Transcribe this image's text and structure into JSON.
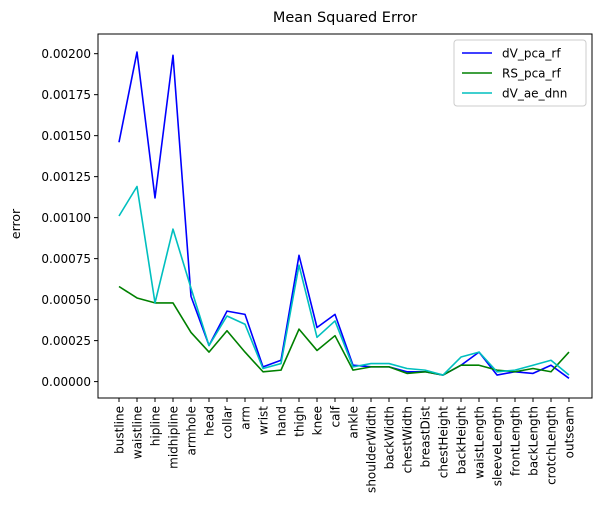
{
  "chart_data": {
    "type": "line",
    "title": "Mean Squared Error",
    "xlabel": "",
    "ylabel": "error",
    "ylim": [
      -0.0001,
      0.00212
    ],
    "yticks": [
      0.0,
      0.00025,
      0.0005,
      0.00075,
      0.001,
      0.00125,
      0.0015,
      0.00175,
      0.002
    ],
    "ytick_labels": [
      "0.00000",
      "0.00025",
      "0.00050",
      "0.00075",
      "0.00100",
      "0.00125",
      "0.00150",
      "0.00175",
      "0.00200"
    ],
    "grid": false,
    "legend_position": "top-right",
    "categories": [
      "bustline",
      "waistline",
      "hipline",
      "midhipline",
      "armhole",
      "head",
      "collar",
      "arm",
      "wrist",
      "hand",
      "thigh",
      "knee",
      "calf",
      "ankle",
      "shoulderWidth",
      "backWidth",
      "chestWidth",
      "breastDist",
      "chestHeight",
      "backHeight",
      "waistLength",
      "sleeveLength",
      "frontLength",
      "backLength",
      "crotchLength",
      "outseam"
    ],
    "series": [
      {
        "name": "dV_pca_rf",
        "color": "#0000ff",
        "values": [
          0.00146,
          0.00201,
          0.00112,
          0.00199,
          0.00052,
          0.00022,
          0.00043,
          0.00041,
          9e-05,
          0.00013,
          0.00077,
          0.00033,
          0.00041,
          0.0001,
          9e-05,
          9e-05,
          6e-05,
          6e-05,
          4e-05,
          0.0001,
          0.00018,
          4e-05,
          6e-05,
          5e-05,
          0.0001,
          2e-05
        ]
      },
      {
        "name": "RS_pca_rf",
        "color": "#008000",
        "values": [
          0.00058,
          0.00051,
          0.00048,
          0.00048,
          0.0003,
          0.00018,
          0.00031,
          0.00018,
          6e-05,
          7e-05,
          0.00032,
          0.00019,
          0.00028,
          7e-05,
          9e-05,
          9e-05,
          5e-05,
          6e-05,
          4e-05,
          0.0001,
          0.0001,
          7e-05,
          6e-05,
          8e-05,
          6e-05,
          0.00018
        ]
      },
      {
        "name": "dV_ae_dnn",
        "color": "#00bfbf",
        "values": [
          0.00101,
          0.00119,
          0.00048,
          0.00093,
          0.00057,
          0.00022,
          0.0004,
          0.00035,
          8e-05,
          0.00011,
          0.00071,
          0.00027,
          0.00037,
          9e-05,
          0.00011,
          0.00011,
          8e-05,
          7e-05,
          4e-05,
          0.00015,
          0.00018,
          6e-05,
          7e-05,
          0.0001,
          0.00013,
          4e-05
        ]
      }
    ]
  }
}
